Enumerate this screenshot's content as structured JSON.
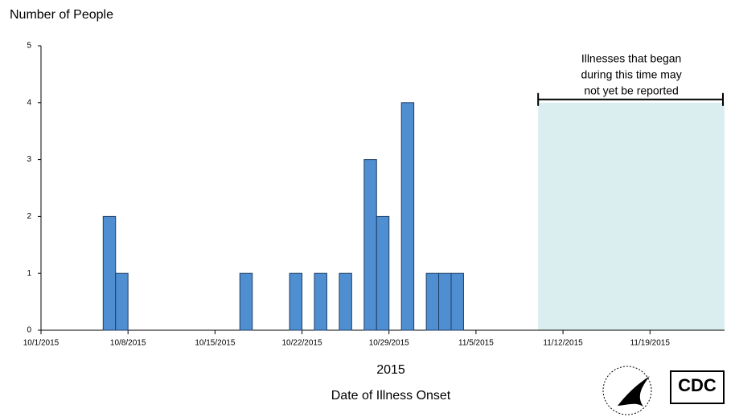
{
  "chart_data": {
    "type": "bar",
    "y_label": "Number of People",
    "x_label": "Date of Illness Onset",
    "x_year": "2015",
    "x": [
      "10/6/2015",
      "10/7/2015",
      "10/17/2015",
      "10/21/2015",
      "10/23/2015",
      "10/25/2015",
      "10/27/2015",
      "10/28/2015",
      "10/30/2015",
      "11/1/2015",
      "11/2/2015",
      "11/3/2015"
    ],
    "values": [
      2,
      1,
      1,
      1,
      1,
      1,
      3,
      2,
      4,
      1,
      1,
      1
    ],
    "color": "#4f8ed0",
    "xlim": [
      "10/1/2015",
      "11/25/2015"
    ],
    "xticks": [
      "10/1/2015",
      "10/8/2015",
      "10/15/2015",
      "10/22/2015",
      "10/29/2015",
      "11/5/2015",
      "11/12/2015",
      "11/19/2015"
    ],
    "ylim": [
      0,
      5
    ],
    "yticks": [
      0,
      1,
      2,
      3,
      4,
      5
    ],
    "shade_range": [
      "11/10/2015",
      "11/25/2015"
    ],
    "shade_color": "#daeef0",
    "shade_note": [
      "Illnesses that began",
      "during this time may",
      "not yet be reported"
    ],
    "logo_text": "CDC"
  }
}
